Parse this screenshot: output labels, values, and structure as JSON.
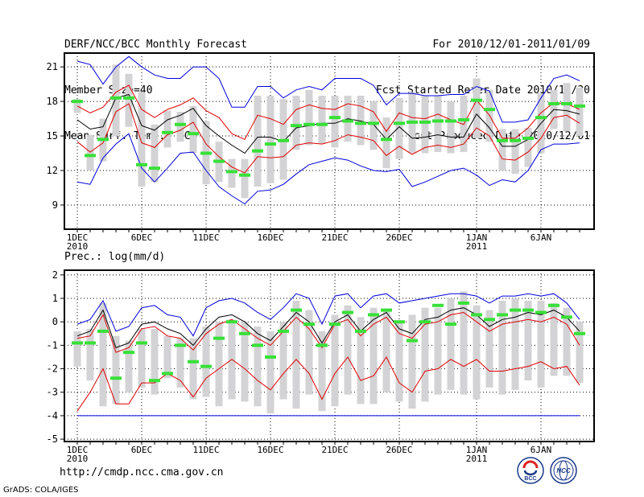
{
  "header": {
    "title": "DERF/NCC/BCC Monthly Forecast",
    "member_size": "Member Size=40",
    "variable_top": "Mean Surf. Temp.: °C",
    "period": "For 2010/12/01-2011/01/09",
    "started": "Fcst Started Refer Date 2010/11/30",
    "produced": "Fcst Produced Date 2010/12/01"
  },
  "footer": {
    "url": "http://cmdp.ncc.cma.gov.cn",
    "grads": "GrADS: COLA/IGES",
    "logo_left": "BCC",
    "logo_right": "NCC"
  },
  "colors": {
    "box": "#d3d3d5",
    "mean": "#000000",
    "spread": "#e00000",
    "range": "#0000dd",
    "obs": "#38e038",
    "grid": "#000000"
  },
  "chart_data": [
    {
      "type": "box",
      "title": "Mean Surf. Temp.: °C",
      "xlabel": "",
      "ylabel": "",
      "ylim": [
        6.9,
        22.2
      ],
      "yticks": [
        9,
        12,
        15,
        18,
        21
      ],
      "x_tick_labels": [
        {
          "day": 1,
          "label": "1DEC",
          "sub": "2010"
        },
        {
          "day": 6,
          "label": "6DEC",
          "sub": ""
        },
        {
          "day": 11,
          "label": "11DEC",
          "sub": ""
        },
        {
          "day": 16,
          "label": "16DEC",
          "sub": ""
        },
        {
          "day": 21,
          "label": "21DEC",
          "sub": ""
        },
        {
          "day": 26,
          "label": "26DEC",
          "sub": ""
        },
        {
          "day": 32,
          "label": "1JAN",
          "sub": "2011"
        },
        {
          "day": 37,
          "label": "6JAN",
          "sub": ""
        }
      ],
      "days": [
        1,
        2,
        3,
        4,
        5,
        6,
        7,
        8,
        9,
        10,
        11,
        12,
        13,
        14,
        15,
        16,
        17,
        18,
        19,
        20,
        21,
        22,
        23,
        24,
        25,
        26,
        27,
        28,
        29,
        30,
        31,
        32,
        33,
        34,
        35,
        36,
        37,
        38,
        39,
        40
      ],
      "box_low": [
        17.0,
        12.0,
        12.8,
        15.0,
        15.8,
        10.6,
        11.0,
        14.0,
        14.5,
        13.5,
        10.8,
        11.0,
        10.5,
        9.6,
        10.6,
        10.9,
        11.2,
        13.8,
        14.2,
        14.3,
        14.0,
        14.5,
        14.2,
        13.8,
        12.2,
        13.0,
        13.5,
        13.5,
        13.6,
        13.5,
        13.6,
        14.8,
        14.5,
        12.0,
        11.7,
        12.3,
        13.5,
        15.6,
        15.4,
        15.0
      ],
      "box_high": [
        18.2,
        15.1,
        16.5,
        21.2,
        20.4,
        18.8,
        16.0,
        17.2,
        17.1,
        17.6,
        16.3,
        14.5,
        13.0,
        13.0,
        18.5,
        18.5,
        18.2,
        18.5,
        19.0,
        18.5,
        18.5,
        18.5,
        18.5,
        18.0,
        16.6,
        18.3,
        18.8,
        18.5,
        18.5,
        18.0,
        18.5,
        20.0,
        19.0,
        15.6,
        15.6,
        15.7,
        18.7,
        19.0,
        19.6,
        19.2
      ],
      "mean": [
        16.4,
        15.6,
        15.8,
        18.3,
        18.6,
        15.9,
        15.5,
        16.4,
        16.8,
        17.4,
        15.9,
        15.0,
        14.2,
        13.5,
        14.9,
        14.9,
        14.5,
        15.7,
        15.9,
        16.1,
        16.1,
        16.5,
        16.3,
        16.0,
        14.7,
        15.8,
        14.8,
        14.9,
        15.1,
        14.9,
        14.9,
        16.9,
        15.7,
        14.1,
        14.1,
        14.7,
        16.1,
        17.3,
        17.2,
        16.9
      ],
      "upper": [
        17.6,
        17.0,
        17.5,
        18.8,
        19.4,
        17.3,
        16.6,
        17.3,
        17.7,
        18.3,
        17.2,
        16.6,
        15.2,
        14.7,
        16.8,
        16.5,
        16.0,
        17.3,
        17.7,
        17.4,
        17.3,
        17.8,
        17.6,
        17.1,
        15.4,
        17.0,
        16.6,
        16.5,
        16.9,
        16.4,
        16.0,
        18.1,
        16.8,
        14.8,
        14.8,
        15.7,
        17.0,
        17.9,
        17.8,
        17.3
      ],
      "lower": [
        14.5,
        13.6,
        14.4,
        17.1,
        17.8,
        14.4,
        14.0,
        15.1,
        15.5,
        16.2,
        14.3,
        13.2,
        12.3,
        11.8,
        13.2,
        13.1,
        13.2,
        14.2,
        14.4,
        14.3,
        14.6,
        15.1,
        14.9,
        14.6,
        13.3,
        14.1,
        13.4,
        14.0,
        14.2,
        14.0,
        14.3,
        15.7,
        15.0,
        13.0,
        12.9,
        13.6,
        14.8,
        16.6,
        16.8,
        16.1
      ],
      "max": [
        21.5,
        21.2,
        19.5,
        21.0,
        21.9,
        21.0,
        20.3,
        20.0,
        20.0,
        21.0,
        21.0,
        20.0,
        17.5,
        17.5,
        19.3,
        19.3,
        18.3,
        19.0,
        19.3,
        19.0,
        20.0,
        20.0,
        20.0,
        19.4,
        17.7,
        18.7,
        18.7,
        18.5,
        18.5,
        18.6,
        18.6,
        19.3,
        18.9,
        16.2,
        16.2,
        16.4,
        18.3,
        20.0,
        20.3,
        19.8
      ],
      "min": [
        11.0,
        10.8,
        13.1,
        14.3,
        15.2,
        12.2,
        11.0,
        12.2,
        13.5,
        13.6,
        12.0,
        10.6,
        9.8,
        9.1,
        10.2,
        10.3,
        10.8,
        11.7,
        12.5,
        12.8,
        13.1,
        12.9,
        12.4,
        12.0,
        11.9,
        12.1,
        10.6,
        11.0,
        11.5,
        12.0,
        12.2,
        11.6,
        10.7,
        11.2,
        11.0,
        12.0,
        13.8,
        14.3,
        14.3,
        14.4
      ],
      "obs": [
        18.0,
        13.3,
        14.7,
        18.3,
        18.3,
        12.5,
        12.2,
        15.3,
        16.0,
        15.2,
        13.5,
        12.8,
        11.9,
        11.6,
        13.7,
        14.3,
        14.6,
        15.9,
        16.0,
        16.0,
        16.6,
        16.3,
        16.1,
        16.1,
        14.7,
        16.1,
        16.2,
        16.2,
        16.3,
        16.3,
        16.4,
        18.1,
        17.3,
        14.6,
        14.6,
        14.8,
        16.6,
        17.8,
        17.8,
        17.6
      ]
    },
    {
      "type": "box",
      "title": "Prec.: log(mm/d)",
      "xlabel": "",
      "ylabel": "",
      "ylim": [
        -5.1,
        2.2
      ],
      "yticks": [
        -5,
        -4,
        -3,
        -2,
        -1,
        0,
        1,
        2
      ],
      "x_tick_labels": [
        {
          "day": 1,
          "label": "1DEC",
          "sub": "2010"
        },
        {
          "day": 6,
          "label": "6DEC",
          "sub": ""
        },
        {
          "day": 11,
          "label": "11DEC",
          "sub": ""
        },
        {
          "day": 16,
          "label": "16DEC",
          "sub": ""
        },
        {
          "day": 21,
          "label": "21DEC",
          "sub": ""
        },
        {
          "day": 26,
          "label": "26DEC",
          "sub": ""
        },
        {
          "day": 32,
          "label": "1JAN",
          "sub": "2011"
        },
        {
          "day": 37,
          "label": "6JAN",
          "sub": ""
        }
      ],
      "days": [
        1,
        2,
        3,
        4,
        5,
        6,
        7,
        8,
        9,
        10,
        11,
        12,
        13,
        14,
        15,
        16,
        17,
        18,
        19,
        20,
        21,
        22,
        23,
        24,
        25,
        26,
        27,
        28,
        29,
        30,
        31,
        32,
        33,
        34,
        35,
        36,
        37,
        38,
        39,
        40
      ],
      "box_low": [
        -1.9,
        -2.5,
        -3.6,
        -3.5,
        -3.0,
        -2.8,
        -3.1,
        -2.4,
        -2.8,
        -3.3,
        -3.2,
        -3.6,
        -3.3,
        -3.4,
        -3.6,
        -3.9,
        -3.3,
        -3.7,
        -3.1,
        -3.8,
        -3.6,
        -3.1,
        -3.5,
        -3.5,
        -3.0,
        -3.4,
        -3.7,
        -3.4,
        -3.1,
        -2.9,
        -3.1,
        -3.3,
        -2.8,
        -3.1,
        -2.9,
        -2.5,
        -2.8,
        -2.3,
        -2.3,
        -2.6
      ],
      "box_high": [
        -0.4,
        -0.3,
        0.8,
        -0.6,
        -0.8,
        -0.3,
        -0.3,
        -0.6,
        -0.7,
        -0.7,
        -0.2,
        0.0,
        0.1,
        0.0,
        -0.2,
        -0.4,
        0.0,
        0.9,
        0.5,
        -0.4,
        0.3,
        0.7,
        0.2,
        0.6,
        0.5,
        0.0,
        0.3,
        0.6,
        0.6,
        1.0,
        1.3,
        0.7,
        0.5,
        0.9,
        1.0,
        0.9,
        0.9,
        0.8,
        0.6,
        0.0
      ],
      "mean": [
        -0.6,
        -0.4,
        0.5,
        -1.1,
        -0.9,
        -0.1,
        0.0,
        -0.3,
        -0.5,
        -1.0,
        -0.3,
        0.2,
        0.3,
        0.0,
        -0.5,
        -0.8,
        -0.2,
        0.4,
        0.0,
        -0.9,
        0.0,
        0.3,
        -0.4,
        0.1,
        0.4,
        -0.3,
        -0.5,
        0.1,
        0.2,
        0.5,
        0.6,
        0.3,
        -0.2,
        0.1,
        0.2,
        0.4,
        0.3,
        0.5,
        0.2,
        -0.4
      ],
      "upper": [
        -0.7,
        -0.6,
        0.3,
        -1.3,
        -1.1,
        -0.3,
        -0.2,
        -0.6,
        -0.7,
        -1.2,
        -0.5,
        -0.1,
        0.1,
        -0.3,
        -0.7,
        -1.0,
        -0.4,
        0.2,
        -0.3,
        -1.1,
        -0.1,
        0.1,
        -0.6,
        -0.1,
        0.2,
        -0.5,
        -0.7,
        -0.1,
        0.0,
        0.3,
        0.4,
        0.0,
        -0.4,
        -0.1,
        0.0,
        0.1,
        0.0,
        0.2,
        -0.1,
        -1.0
      ],
      "lower": [
        -3.8,
        -3.0,
        -2.0,
        -3.5,
        -3.5,
        -2.6,
        -2.6,
        -2.2,
        -2.5,
        -3.2,
        -2.4,
        -2.0,
        -1.6,
        -2.0,
        -2.5,
        -2.9,
        -2.2,
        -1.6,
        -2.2,
        -3.3,
        -2.2,
        -1.5,
        -2.5,
        -2.3,
        -1.5,
        -2.6,
        -3.0,
        -2.1,
        -2.0,
        -1.6,
        -1.9,
        -1.6,
        -2.1,
        -2.1,
        -2.0,
        -1.9,
        -1.7,
        -2.0,
        -1.9,
        -2.7
      ],
      "max": [
        -0.1,
        0.1,
        0.9,
        -0.4,
        -0.2,
        0.6,
        0.7,
        0.3,
        0.2,
        -0.6,
        0.6,
        0.9,
        1.0,
        0.8,
        0.4,
        0.1,
        0.6,
        1.2,
        1.0,
        -0.1,
        1.1,
        1.2,
        0.6,
        1.1,
        1.2,
        0.8,
        0.9,
        1.0,
        1.1,
        1.2,
        1.2,
        1.1,
        0.8,
        1.1,
        1.1,
        1.2,
        1.1,
        1.2,
        0.8,
        0.1
      ],
      "min": [
        -4.0,
        -4.0,
        -4.0,
        -4.0,
        -4.0,
        -4.0,
        -4.0,
        -4.0,
        -4.0,
        -4.0,
        -4.0,
        -4.0,
        -4.0,
        -4.0,
        -4.0,
        -4.0,
        -4.0,
        -4.0,
        -4.0,
        -4.0,
        -4.0,
        -4.0,
        -4.0,
        -4.0,
        -4.0,
        -4.0,
        -4.0,
        -4.0,
        -4.0,
        -4.0,
        -4.0,
        -4.0,
        -4.0,
        -4.0,
        -4.0,
        -4.0,
        -4.0,
        -4.0,
        -4.0,
        -4.0
      ],
      "obs": [
        -0.9,
        -0.9,
        -0.4,
        -2.4,
        -1.3,
        -0.9,
        -2.5,
        -2.2,
        -1.0,
        -1.7,
        -1.9,
        -0.7,
        0.0,
        -0.5,
        -1.0,
        -1.5,
        -0.4,
        0.5,
        -0.1,
        -1.0,
        -0.1,
        0.4,
        -0.4,
        0.3,
        0.5,
        0.0,
        -0.8,
        0.0,
        0.7,
        -0.1,
        0.8,
        0.3,
        0.1,
        0.3,
        0.5,
        0.5,
        0.4,
        0.7,
        0.2,
        -0.5
      ]
    }
  ]
}
